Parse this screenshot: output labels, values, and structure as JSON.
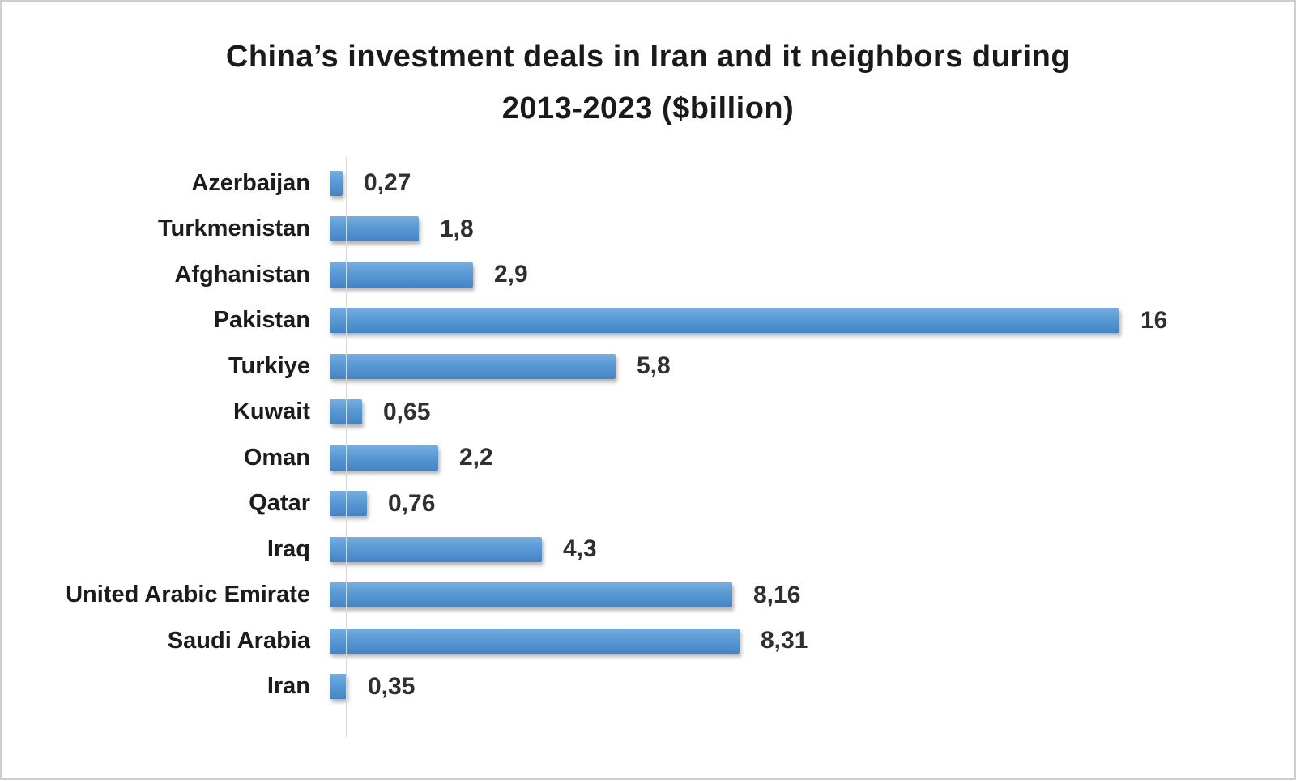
{
  "header": {
    "title_line1": "China’s investment deals in Iran and it neighbors during",
    "title_line2": "2013-2023 ($billion)"
  },
  "chart_data": {
    "type": "bar",
    "orientation": "horizontal",
    "title": "China’s investment deals in Iran and it neighbors during 2013-2023 ($billion)",
    "categories": [
      "Azerbaijan",
      "Turkmenistan",
      "Afghanistan",
      "Pakistan",
      "Turkiye",
      "Kuwait",
      "Oman",
      "Qatar",
      "Iraq",
      "United Arabic Emirate",
      "Saudi Arabia",
      "Iran"
    ],
    "values": [
      0.27,
      1.8,
      2.9,
      16,
      5.8,
      0.65,
      2.2,
      0.76,
      4.3,
      8.16,
      8.31,
      0.35
    ],
    "value_labels": [
      "0,27",
      "1,8",
      "2,9",
      "16",
      "5,8",
      "0,65",
      "2,2",
      "0,76",
      "4,3",
      "8,16",
      "8,31",
      "0,35"
    ],
    "xlabel": "",
    "ylabel": "",
    "xlim": [
      0,
      16
    ],
    "grid": false,
    "legend": false,
    "data_labels": true,
    "bar_color": "#5B9BD5",
    "axis_line_color": "#d9d9d9",
    "decimal_separator": ","
  }
}
